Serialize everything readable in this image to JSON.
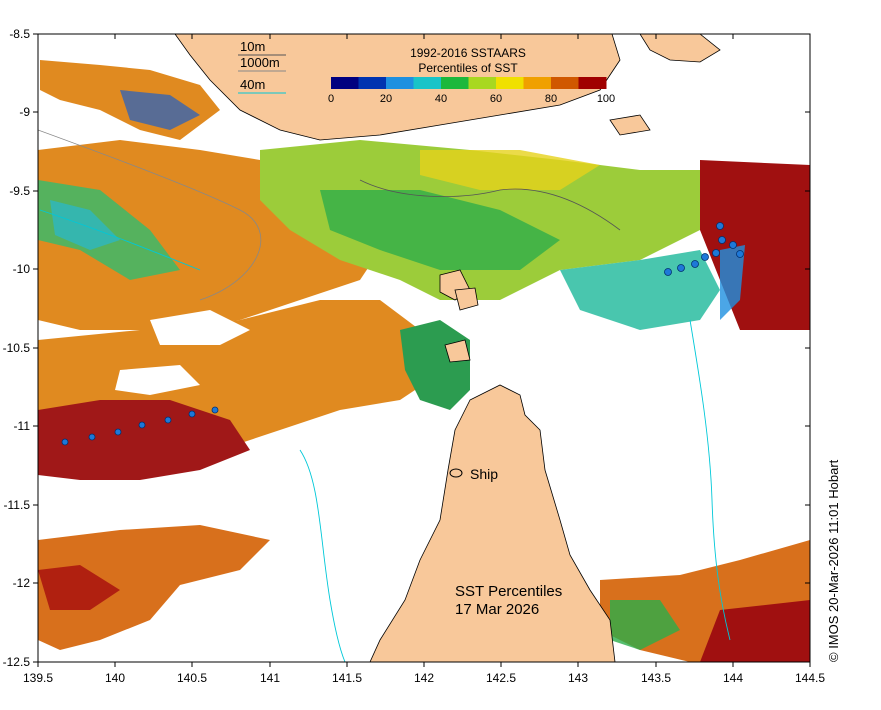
{
  "map": {
    "x_ticks": [
      "139.5",
      "140",
      "140.5",
      "141",
      "141.5",
      "142",
      "142.5",
      "143",
      "143.5",
      "144",
      "144.5"
    ],
    "y_ticks": [
      "-8.5",
      "-9",
      "-9.5",
      "-10",
      "-10.5",
      "-11",
      "-11.5",
      "-12",
      "-12.5"
    ],
    "x_range": [
      139.5,
      144.5
    ],
    "y_range": [
      -12.5,
      -8.5
    ],
    "legend": {
      "title_line1": "1992-2016 SSTAARS",
      "title_line2": "Percentiles of SST",
      "ticks": [
        "0",
        "20",
        "40",
        "60",
        "80",
        "100"
      ],
      "colors": [
        "#000080",
        "#0033b0",
        "#1e90e0",
        "#19c4c8",
        "#1cb83c",
        "#a8d820",
        "#f0e000",
        "#f0a000",
        "#d05800",
        "#a00000"
      ]
    },
    "depth_key": {
      "label_10m": "10m",
      "label_1000m": "1000m",
      "label_40m": "40m",
      "color_10m": "#555555",
      "color_1000m": "#888888",
      "color_40m": "#00c8d8"
    },
    "ship_label": "Ship",
    "title_line1": "SST Percentiles",
    "title_line2": "17 Mar 2026",
    "credit": "© IMOS 20-Mar-2026 11:01 Hobart",
    "land_color": "#f8c89a"
  }
}
